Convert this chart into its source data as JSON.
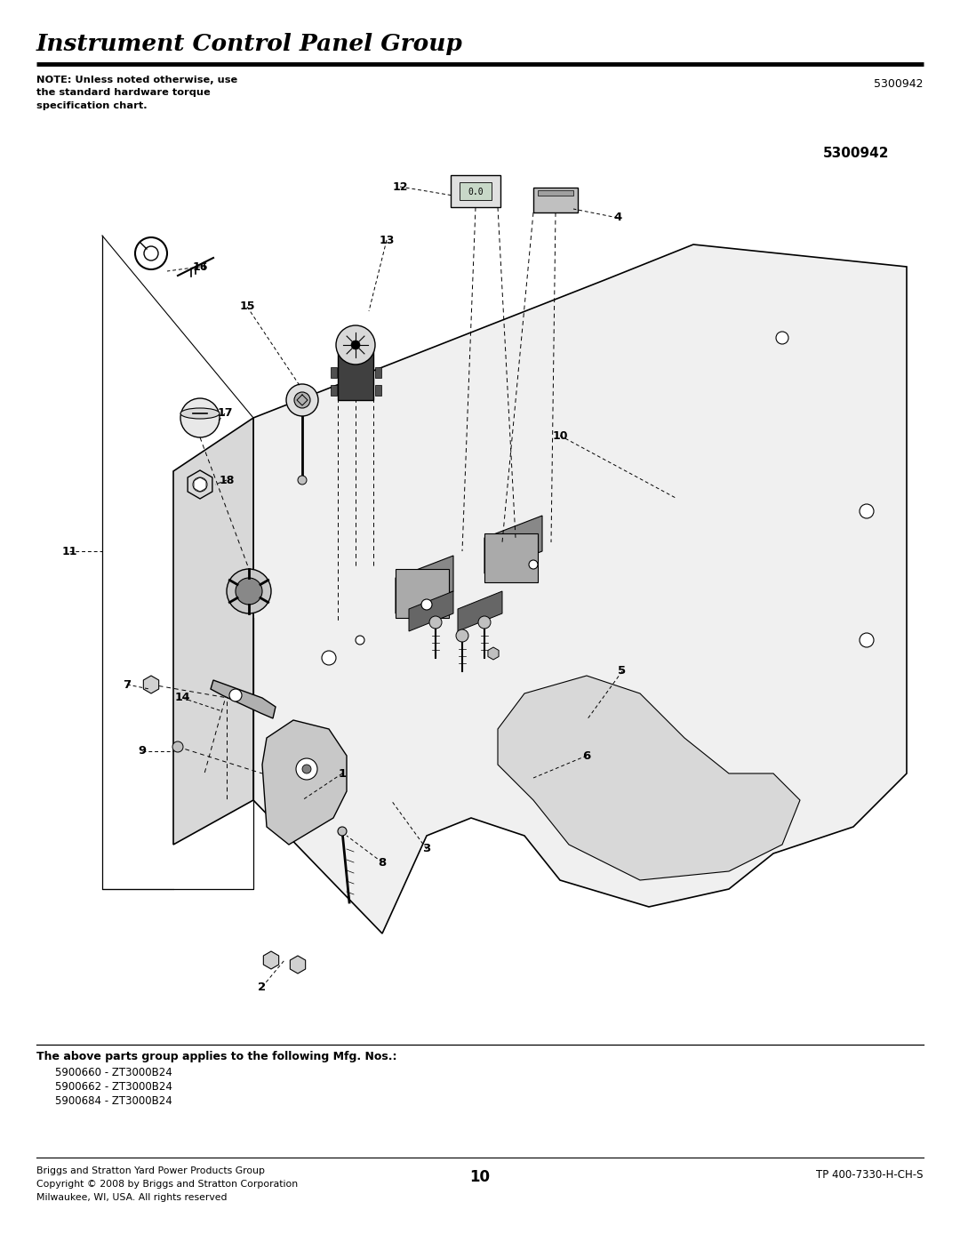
{
  "title": "Instrument Control Panel Group",
  "part_number_top_right": "5300942",
  "part_number_diagram": "5300942",
  "note_text": "NOTE: Unless noted otherwise, use\nthe standard hardware torque\nspecification chart.",
  "applies_header": "The above parts group applies to the following Mfg. Nos.:",
  "applies_items": [
    "5900660 - ZT3000B24",
    "5900662 - ZT3000B24",
    "5900684 - ZT3000B24"
  ],
  "footer_left": "Briggs and Stratton Yard Power Products Group\nCopyright © 2008 by Briggs and Stratton Corporation\nMilwaukee, WI, USA. All rights reserved",
  "footer_center": "10",
  "footer_right": "TP 400-7330-H-CH-S",
  "bg_color": "#ffffff",
  "text_color": "#000000"
}
